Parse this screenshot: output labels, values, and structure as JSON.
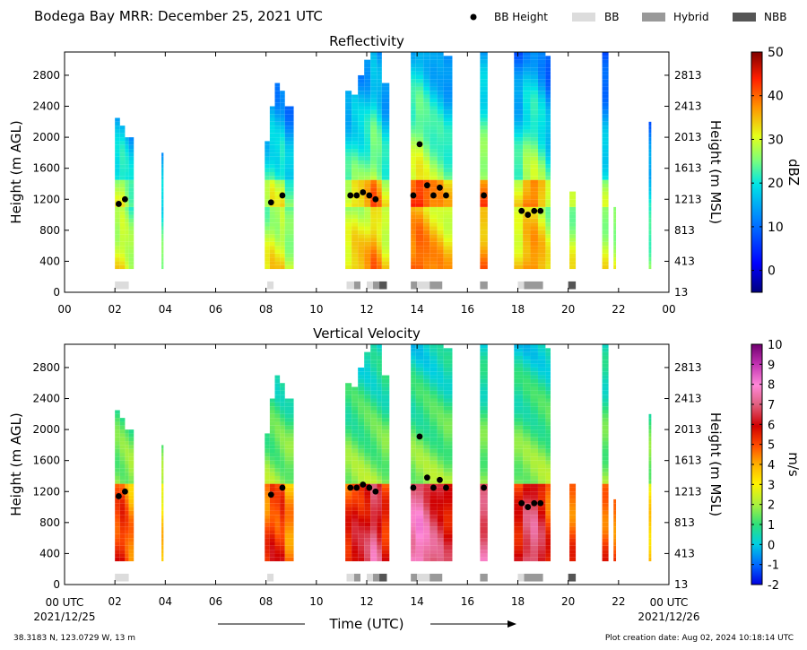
{
  "figure": {
    "title": "Bodega Bay MRR:  December 25, 2021 UTC",
    "location": "38.3183 N, 123.0729 W, 13 m",
    "creation_date": "Plot creation date: Aug 02, 2024 10:18:14 UTC",
    "xlabel": "Time (UTC)",
    "x_start_label": "00 UTC",
    "x_start_date": "2021/12/25",
    "x_end_label": "00 UTC",
    "x_end_date": "2021/12/26",
    "legend": [
      {
        "label": "BB Height",
        "kind": "marker",
        "color": "#000000"
      },
      {
        "label": "BB",
        "kind": "patch",
        "color": "#dcdcdc"
      },
      {
        "label": "Hybrid",
        "kind": "patch",
        "color": "#999999"
      },
      {
        "label": "NBB",
        "kind": "patch",
        "color": "#555555"
      }
    ]
  },
  "chart_data": [
    {
      "type": "heatmap",
      "title": "Reflectivity",
      "ylabel": "Height (m AGL)",
      "y2label": "Height (m MSL)",
      "x_ticks": [
        "00",
        "02",
        "04",
        "06",
        "08",
        "10",
        "12",
        "14",
        "16",
        "18",
        "20",
        "22",
        "00"
      ],
      "xlim_hours": [
        0,
        24
      ],
      "ylim": [
        0,
        3100
      ],
      "y_ticks": [
        0,
        400,
        800,
        1200,
        1600,
        2000,
        2400,
        2800
      ],
      "y2_ticks": [
        "13",
        "413",
        "813",
        "1213",
        "1613",
        "2013",
        "2413",
        "2813"
      ],
      "colorbar": {
        "label": "dBZ",
        "ticks": [
          0,
          10,
          20,
          30,
          40,
          50
        ],
        "range": [
          -5,
          50
        ]
      },
      "bb_height_points": [
        [
          2.15,
          1140
        ],
        [
          2.4,
          1200
        ],
        [
          8.2,
          1160
        ],
        [
          8.65,
          1250
        ],
        [
          11.35,
          1250
        ],
        [
          11.6,
          1250
        ],
        [
          11.85,
          1290
        ],
        [
          12.1,
          1250
        ],
        [
          12.35,
          1200
        ],
        [
          13.85,
          1250
        ],
        [
          14.1,
          1910
        ],
        [
          14.4,
          1380
        ],
        [
          14.65,
          1250
        ],
        [
          14.9,
          1350
        ],
        [
          15.15,
          1250
        ],
        [
          16.65,
          1250
        ],
        [
          18.15,
          1050
        ],
        [
          18.4,
          1000
        ],
        [
          18.65,
          1050
        ],
        [
          18.9,
          1050
        ]
      ],
      "bb_type_segments": [
        [
          2.0,
          2.55,
          "BB"
        ],
        [
          8.05,
          8.3,
          "BB"
        ],
        [
          11.2,
          11.5,
          "BB"
        ],
        [
          11.5,
          11.75,
          "Hybrid"
        ],
        [
          12.0,
          12.25,
          "BB"
        ],
        [
          12.25,
          12.5,
          "Hybrid"
        ],
        [
          12.5,
          12.8,
          "NBB"
        ],
        [
          13.75,
          14.0,
          "Hybrid"
        ],
        [
          14.0,
          14.5,
          "BB"
        ],
        [
          14.5,
          15.0,
          "Hybrid"
        ],
        [
          16.5,
          16.8,
          "Hybrid"
        ],
        [
          18.0,
          18.25,
          "BB"
        ],
        [
          18.25,
          19.0,
          "Hybrid"
        ],
        [
          20.0,
          20.3,
          "NBB"
        ]
      ]
    },
    {
      "type": "heatmap",
      "title": "Vertical Velocity",
      "ylabel": "Height (m AGL)",
      "y2label": "Height (m MSL)",
      "x_ticks": [
        "00",
        "02",
        "04",
        "06",
        "08",
        "10",
        "12",
        "14",
        "16",
        "18",
        "20",
        "22",
        "00"
      ],
      "xlim_hours": [
        0,
        24
      ],
      "ylim": [
        0,
        3100
      ],
      "y_ticks": [
        0,
        400,
        800,
        1200,
        1600,
        2000,
        2400,
        2800
      ],
      "y2_ticks": [
        "13",
        "413",
        "813",
        "1213",
        "1613",
        "2013",
        "2413",
        "2813"
      ],
      "colorbar": {
        "label": "m/s",
        "ticks": [
          -2,
          -1,
          0,
          1,
          2,
          3,
          4,
          5,
          6,
          7,
          8,
          9,
          10
        ],
        "range": [
          -2,
          10
        ]
      },
      "bb_height_points": [
        [
          2.15,
          1140
        ],
        [
          2.4,
          1200
        ],
        [
          8.2,
          1160
        ],
        [
          8.65,
          1250
        ],
        [
          11.35,
          1250
        ],
        [
          11.6,
          1250
        ],
        [
          11.85,
          1290
        ],
        [
          12.1,
          1250
        ],
        [
          12.35,
          1200
        ],
        [
          13.85,
          1250
        ],
        [
          14.1,
          1910
        ],
        [
          14.4,
          1380
        ],
        [
          14.65,
          1250
        ],
        [
          14.9,
          1350
        ],
        [
          15.15,
          1250
        ],
        [
          16.65,
          1250
        ],
        [
          18.15,
          1050
        ],
        [
          18.4,
          1000
        ],
        [
          18.65,
          1050
        ],
        [
          18.9,
          1050
        ]
      ],
      "bb_type_segments": [
        [
          2.0,
          2.55,
          "BB"
        ],
        [
          8.05,
          8.3,
          "BB"
        ],
        [
          11.2,
          11.5,
          "BB"
        ],
        [
          11.5,
          11.75,
          "Hybrid"
        ],
        [
          12.0,
          12.25,
          "BB"
        ],
        [
          12.25,
          12.5,
          "Hybrid"
        ],
        [
          12.5,
          12.8,
          "NBB"
        ],
        [
          13.75,
          14.0,
          "Hybrid"
        ],
        [
          14.0,
          14.5,
          "BB"
        ],
        [
          14.5,
          15.0,
          "Hybrid"
        ],
        [
          16.5,
          16.8,
          "Hybrid"
        ],
        [
          18.0,
          18.25,
          "BB"
        ],
        [
          18.25,
          19.0,
          "Hybrid"
        ],
        [
          20.0,
          20.3,
          "NBB"
        ]
      ]
    }
  ]
}
